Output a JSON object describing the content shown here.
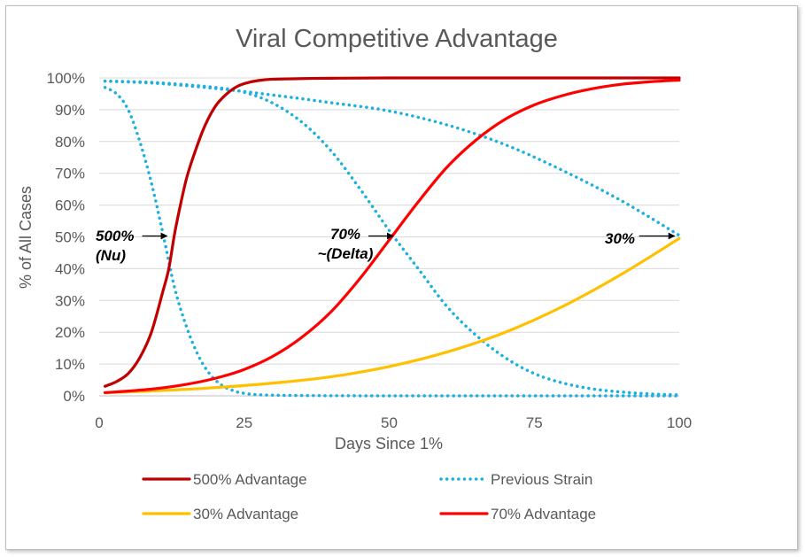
{
  "chart_data": {
    "type": "line",
    "title": "Viral Competitive Advantage",
    "xlabel": "Days Since 1%",
    "ylabel": "% of All Cases",
    "xlim": [
      0,
      100
    ],
    "ylim": [
      0,
      100
    ],
    "x_ticks": [
      "0",
      "25",
      "50",
      "75",
      "100"
    ],
    "y_ticks": [
      "0%",
      "10%",
      "20%",
      "30%",
      "40%",
      "50%",
      "60%",
      "70%",
      "80%",
      "90%",
      "100%"
    ],
    "grid": "horizontal",
    "legend_position": "bottom",
    "series": [
      {
        "name": "500% Advantage",
        "color": "#c00000",
        "style": "solid",
        "points": [
          [
            1,
            3
          ],
          [
            3,
            4.5
          ],
          [
            5,
            7
          ],
          [
            7,
            12
          ],
          [
            9,
            20
          ],
          [
            11,
            33
          ],
          [
            12,
            40
          ],
          [
            13,
            51
          ],
          [
            14,
            60
          ],
          [
            15,
            68
          ],
          [
            16,
            74
          ],
          [
            18,
            84
          ],
          [
            20,
            91
          ],
          [
            22,
            95
          ],
          [
            24,
            97.5
          ],
          [
            26,
            98.7
          ],
          [
            28,
            99.3
          ],
          [
            30,
            99.6
          ],
          [
            35,
            99.8
          ],
          [
            40,
            99.9
          ],
          [
            50,
            100
          ],
          [
            75,
            100
          ],
          [
            100,
            100
          ]
        ]
      },
      {
        "name": "Previous Strain",
        "color": "#1ab0e0",
        "style": "dotted",
        "points": [
          [
            1,
            97
          ],
          [
            3,
            95
          ],
          [
            5,
            90
          ],
          [
            7,
            80
          ],
          [
            9,
            67
          ],
          [
            11,
            51
          ],
          [
            13,
            34
          ],
          [
            15,
            22
          ],
          [
            17,
            13
          ],
          [
            19,
            7
          ],
          [
            21,
            3.5
          ],
          [
            23,
            1.7
          ],
          [
            25,
            0.8
          ],
          [
            30,
            0.2
          ],
          [
            50,
            0
          ],
          [
            100,
            0
          ]
        ]
      },
      {
        "name": "Previous Strain",
        "color": "#1ab0e0",
        "style": "dotted",
        "points": [
          [
            1,
            99
          ],
          [
            10,
            98.5
          ],
          [
            20,
            97
          ],
          [
            25,
            95.5
          ],
          [
            30,
            92
          ],
          [
            35,
            86
          ],
          [
            40,
            77
          ],
          [
            45,
            65
          ],
          [
            50,
            52
          ],
          [
            55,
            40
          ],
          [
            60,
            28
          ],
          [
            65,
            19
          ],
          [
            70,
            12
          ],
          [
            75,
            7
          ],
          [
            80,
            4
          ],
          [
            85,
            2.2
          ],
          [
            90,
            1.2
          ],
          [
            95,
            0.6
          ],
          [
            100,
            0.3
          ]
        ]
      },
      {
        "name": "Previous Strain",
        "color": "#1ab0e0",
        "style": "dotted",
        "points": [
          [
            1,
            99
          ],
          [
            10,
            98.3
          ],
          [
            20,
            96.7
          ],
          [
            30,
            94.6
          ],
          [
            40,
            92.2
          ],
          [
            50,
            89.6
          ],
          [
            60,
            85.2
          ],
          [
            70,
            79
          ],
          [
            80,
            70.8
          ],
          [
            90,
            61.4
          ],
          [
            100,
            50.5
          ]
        ]
      },
      {
        "name": "30% Advantage",
        "color": "#ffc000",
        "style": "solid",
        "points": [
          [
            1,
            1
          ],
          [
            10,
            1.6
          ],
          [
            20,
            2.6
          ],
          [
            30,
            4
          ],
          [
            40,
            6
          ],
          [
            50,
            9.2
          ],
          [
            60,
            13.8
          ],
          [
            70,
            20
          ],
          [
            80,
            28.2
          ],
          [
            90,
            38.2
          ],
          [
            100,
            49.5
          ]
        ]
      },
      {
        "name": "70% Advantage",
        "color": "#ff0000",
        "style": "solid",
        "points": [
          [
            1,
            1
          ],
          [
            5,
            1.5
          ],
          [
            10,
            2.3
          ],
          [
            15,
            3.6
          ],
          [
            20,
            5.5
          ],
          [
            25,
            8.3
          ],
          [
            30,
            12.5
          ],
          [
            35,
            18.5
          ],
          [
            40,
            26.5
          ],
          [
            45,
            37
          ],
          [
            50,
            49
          ],
          [
            55,
            61
          ],
          [
            60,
            72
          ],
          [
            65,
            80.5
          ],
          [
            70,
            87
          ],
          [
            75,
            91.5
          ],
          [
            80,
            94.5
          ],
          [
            85,
            96.6
          ],
          [
            90,
            98
          ],
          [
            95,
            98.8
          ],
          [
            100,
            99.3
          ]
        ]
      }
    ],
    "annotations": [
      {
        "lines": [
          "500%",
          "(Nu)"
        ],
        "target": [
          12,
          50
        ]
      },
      {
        "lines": [
          "70%",
          "~(Delta)"
        ],
        "target": [
          51,
          50
        ]
      },
      {
        "lines": [
          "30%"
        ],
        "target": [
          99.5,
          50
        ]
      }
    ],
    "legend": [
      {
        "label": "500% Advantage",
        "color": "#c00000",
        "style": "solid"
      },
      {
        "label": "Previous Strain",
        "color": "#1ab0e0",
        "style": "dotted"
      },
      {
        "label": "30% Advantage",
        "color": "#ffc000",
        "style": "solid"
      },
      {
        "label": "70% Advantage",
        "color": "#ff0000",
        "style": "solid"
      }
    ]
  }
}
